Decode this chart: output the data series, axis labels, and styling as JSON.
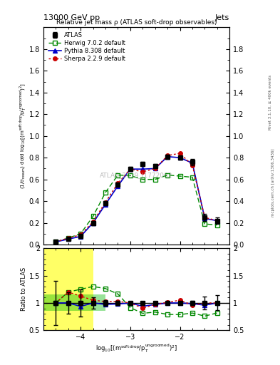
{
  "title_top": "13000 GeV pp",
  "title_right": "Jets",
  "plot_title": "Relative jet mass ρ (ATLAS soft-drop observables)",
  "watermark": "ATLAS_2019_I1772062",
  "right_label_top": "Rivet 3.1.10, ≥ 400k events",
  "right_label_bot": "mcplots.cern.ch [arXiv:1306.3436]",
  "xlabel": "log$_{10}$[(m$^{\\mathrm{soft\\,drop}}$/p$_{\\mathrm{T}}^{\\mathrm{ungroomed}}$)$^{2}$]",
  "ylabel_main": "(1/σ$_{\\mathrm{resum}}$) dσ/d log$_{10}$[(m$^{\\mathrm{soft\\,drop}}$/p$_{T}^{\\mathrm{ungroomed}}$)$^{2}$]",
  "ylabel_ratio": "Ratio to ATLAS",
  "x_data": [
    -4.5,
    -4.25,
    -4.0,
    -3.75,
    -3.5,
    -3.25,
    -3.0,
    -2.75,
    -2.5,
    -2.25,
    -2.0,
    -1.75,
    -1.5,
    -1.25
  ],
  "atlas_y": [
    0.025,
    0.05,
    0.08,
    0.2,
    0.38,
    0.55,
    0.695,
    0.74,
    0.72,
    0.81,
    0.8,
    0.76,
    0.25,
    0.22
  ],
  "atlas_yerr": [
    0.01,
    0.01,
    0.02,
    0.02,
    0.02,
    0.02,
    0.02,
    0.02,
    0.02,
    0.02,
    0.02,
    0.03,
    0.03,
    0.03
  ],
  "herwig_y": [
    0.025,
    0.06,
    0.1,
    0.26,
    0.48,
    0.64,
    0.635,
    0.6,
    0.6,
    0.64,
    0.63,
    0.62,
    0.19,
    0.18
  ],
  "pythia_y": [
    0.025,
    0.05,
    0.075,
    0.2,
    0.37,
    0.54,
    0.695,
    0.695,
    0.7,
    0.81,
    0.8,
    0.75,
    0.24,
    0.22
  ],
  "sherpa_y": [
    0.025,
    0.06,
    0.09,
    0.21,
    0.39,
    0.565,
    0.695,
    0.67,
    0.7,
    0.82,
    0.84,
    0.73,
    0.25,
    0.22
  ],
  "atlas_color": "#000000",
  "herwig_color": "#008800",
  "pythia_color": "#0000cc",
  "sherpa_color": "#cc0000",
  "ylim_main": [
    0.0,
    2.0
  ],
  "ylim_ratio": [
    0.5,
    2.0
  ],
  "xlim": [
    -4.75,
    -1.0
  ],
  "xticks": [
    -4.0,
    -3.0,
    -2.0
  ],
  "yticks_main": [
    0.0,
    0.2,
    0.4,
    0.6,
    0.8,
    1.0,
    1.2,
    1.4,
    1.6,
    1.8
  ],
  "yticks_ratio": [
    0.5,
    1.0,
    1.5,
    2.0
  ],
  "band_yellow_xmax": -3.75,
  "band_green_xmax": -3.5,
  "band_green_ymin": 0.85,
  "band_green_ymax": 1.15
}
